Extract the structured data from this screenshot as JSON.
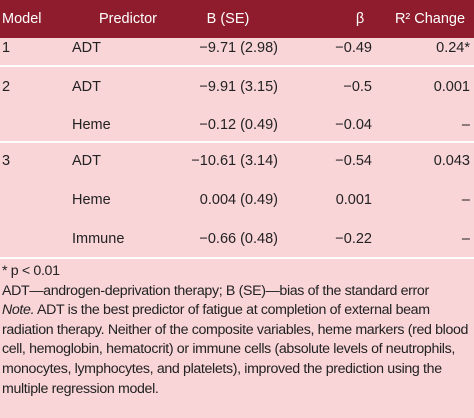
{
  "table": {
    "header": [
      "Model",
      "Predictor",
      "B (SE)",
      "β",
      "R² Change"
    ],
    "rows": [
      [
        "1",
        "ADT",
        "−9.71 (2.98)",
        "−0.49",
        "0.24*"
      ],
      [
        "2",
        "ADT",
        "−9.91 (3.15)",
        "−0.5",
        "0.001"
      ],
      [
        null,
        "Heme",
        "−0.12 (0.49)",
        "−0.04",
        "–"
      ],
      [
        "3",
        "ADT",
        "−10.61 (3.14)",
        "−0.54",
        "0.043"
      ],
      [
        null,
        "Heme",
        "0.004 (0.49)",
        "0.001",
        "–"
      ],
      [
        null,
        "Immune",
        "−0.66 (0.48)",
        "−0.22",
        "–"
      ]
    ]
  },
  "notes": {
    "significance": "* p < 0.01",
    "abbreviations": "ADT—androgen-deprivation therapy; B (SE)—bias of the standard error",
    "note_label": "Note.",
    "note_text": " ADT is the best predictor of fatigue at completion of external beam radiation therapy. Neither of the composite variables, heme markers (red blood cell, hemoglobin, hematocrit) or immune cells (absolute levels of neutrophils, monocytes, lymphocytes, and platelets), improved the prediction using the multiple regression model."
  }
}
